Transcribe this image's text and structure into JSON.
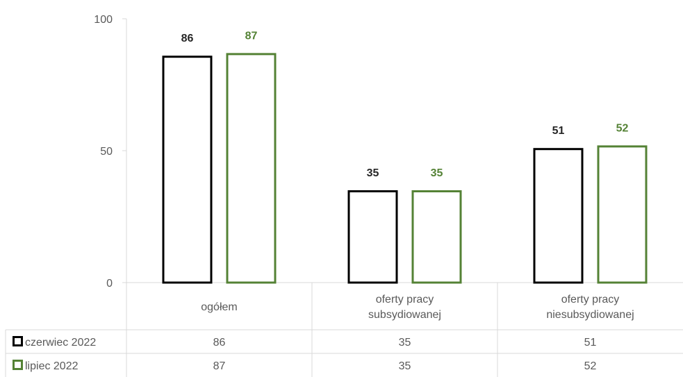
{
  "chart_data": {
    "type": "bar",
    "categories": [
      [
        "ogółem"
      ],
      [
        "oferty pracy",
        "subsydiowanej"
      ],
      [
        "oferty pracy",
        "niesubsydiowanej"
      ]
    ],
    "series": [
      {
        "name": "czerwiec 2022",
        "values": [
          86,
          35,
          51
        ],
        "color": "#000000"
      },
      {
        "name": "lipiec 2022",
        "values": [
          87,
          35,
          52
        ],
        "color": "#548235"
      }
    ],
    "y_ticks": [
      "0",
      "50",
      "100"
    ],
    "ylim": [
      0,
      100
    ],
    "grid": false,
    "legend": "data-table-left",
    "data_labels": true,
    "bar_style": "outline"
  }
}
